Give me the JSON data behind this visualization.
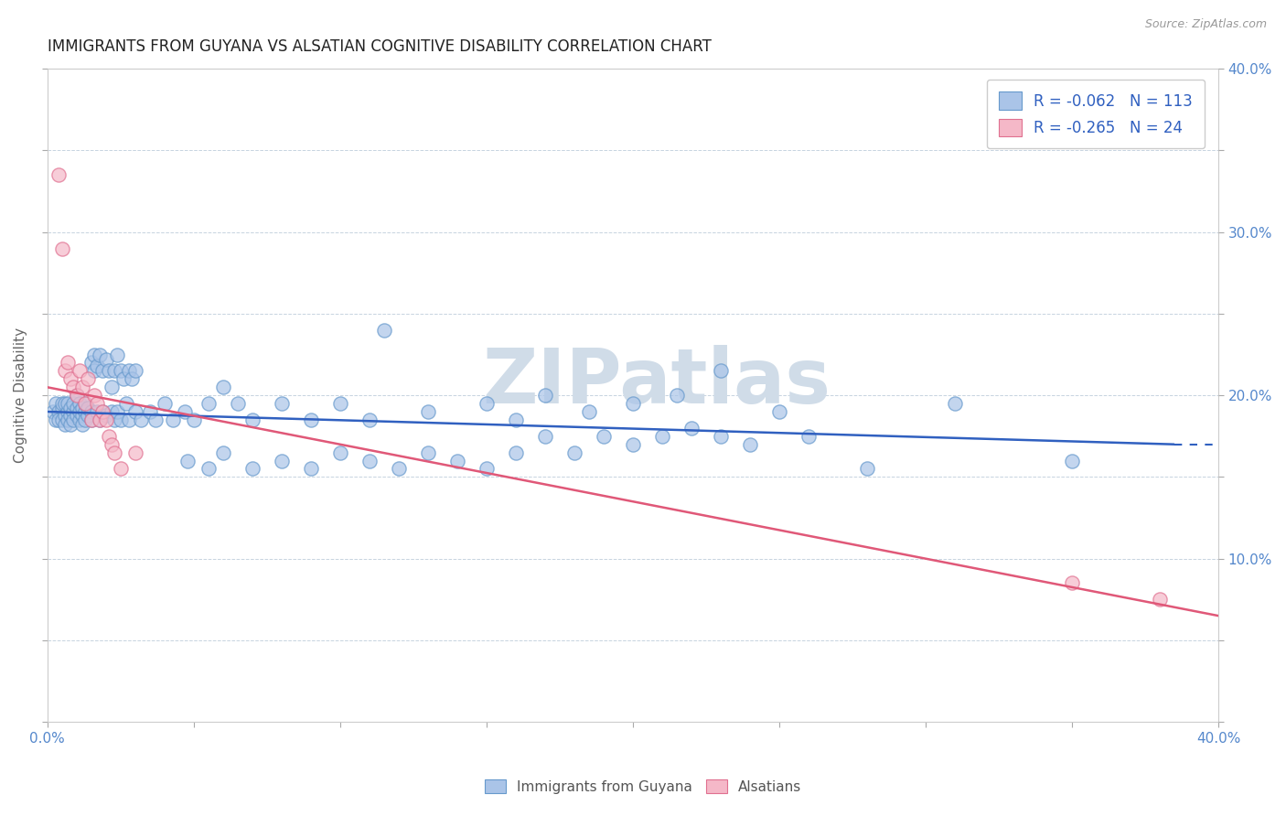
{
  "title": "IMMIGRANTS FROM GUYANA VS ALSATIAN COGNITIVE DISABILITY CORRELATION CHART",
  "source": "Source: ZipAtlas.com",
  "ylabel": "Cognitive Disability",
  "xlim": [
    0.0,
    0.4
  ],
  "ylim": [
    0.0,
    0.4
  ],
  "xtick_vals": [
    0.0,
    0.05,
    0.1,
    0.15,
    0.2,
    0.25,
    0.3,
    0.35,
    0.4
  ],
  "ytick_vals": [
    0.0,
    0.05,
    0.1,
    0.15,
    0.2,
    0.25,
    0.3,
    0.35,
    0.4
  ],
  "blue_R": -0.062,
  "blue_N": 113,
  "pink_R": -0.265,
  "pink_N": 24,
  "blue_marker_color": "#aac4e8",
  "blue_edge_color": "#6699cc",
  "pink_marker_color": "#f5b8c8",
  "pink_edge_color": "#e07090",
  "blue_line_color": "#3060c0",
  "pink_line_color": "#e05878",
  "tick_color": "#5588cc",
  "watermark_color": "#d0dce8",
  "legend_text_color": "#3060c0",
  "blue_line_end": 0.385,
  "blue_line_y_start": 0.19,
  "blue_line_y_end": 0.17,
  "pink_line_y_start": 0.205,
  "pink_line_y_end": 0.065,
  "blue_scatter": [
    [
      0.002,
      0.19
    ],
    [
      0.003,
      0.185
    ],
    [
      0.003,
      0.195
    ],
    [
      0.004,
      0.19
    ],
    [
      0.004,
      0.185
    ],
    [
      0.005,
      0.192
    ],
    [
      0.005,
      0.185
    ],
    [
      0.005,
      0.195
    ],
    [
      0.006,
      0.188
    ],
    [
      0.006,
      0.195
    ],
    [
      0.006,
      0.182
    ],
    [
      0.007,
      0.19
    ],
    [
      0.007,
      0.185
    ],
    [
      0.007,
      0.195
    ],
    [
      0.008,
      0.188
    ],
    [
      0.008,
      0.192
    ],
    [
      0.008,
      0.182
    ],
    [
      0.009,
      0.19
    ],
    [
      0.009,
      0.185
    ],
    [
      0.009,
      0.195
    ],
    [
      0.01,
      0.188
    ],
    [
      0.01,
      0.192
    ],
    [
      0.01,
      0.2
    ],
    [
      0.011,
      0.185
    ],
    [
      0.011,
      0.195
    ],
    [
      0.011,
      0.19
    ],
    [
      0.012,
      0.188
    ],
    [
      0.012,
      0.192
    ],
    [
      0.012,
      0.182
    ],
    [
      0.013,
      0.19
    ],
    [
      0.013,
      0.185
    ],
    [
      0.013,
      0.195
    ],
    [
      0.014,
      0.188
    ],
    [
      0.014,
      0.192
    ],
    [
      0.015,
      0.19
    ],
    [
      0.015,
      0.185
    ],
    [
      0.015,
      0.22
    ],
    [
      0.016,
      0.215
    ],
    [
      0.016,
      0.225
    ],
    [
      0.017,
      0.218
    ],
    [
      0.017,
      0.19
    ],
    [
      0.018,
      0.185
    ],
    [
      0.018,
      0.225
    ],
    [
      0.019,
      0.19
    ],
    [
      0.019,
      0.215
    ],
    [
      0.02,
      0.188
    ],
    [
      0.02,
      0.222
    ],
    [
      0.021,
      0.215
    ],
    [
      0.022,
      0.205
    ],
    [
      0.022,
      0.19
    ],
    [
      0.023,
      0.215
    ],
    [
      0.023,
      0.185
    ],
    [
      0.024,
      0.225
    ],
    [
      0.024,
      0.19
    ],
    [
      0.025,
      0.215
    ],
    [
      0.025,
      0.185
    ],
    [
      0.026,
      0.21
    ],
    [
      0.027,
      0.195
    ],
    [
      0.028,
      0.215
    ],
    [
      0.028,
      0.185
    ],
    [
      0.029,
      0.21
    ],
    [
      0.03,
      0.19
    ],
    [
      0.03,
      0.215
    ],
    [
      0.032,
      0.185
    ],
    [
      0.035,
      0.19
    ],
    [
      0.037,
      0.185
    ],
    [
      0.04,
      0.195
    ],
    [
      0.043,
      0.185
    ],
    [
      0.047,
      0.19
    ],
    [
      0.05,
      0.185
    ],
    [
      0.055,
      0.195
    ],
    [
      0.06,
      0.205
    ],
    [
      0.065,
      0.195
    ],
    [
      0.07,
      0.185
    ],
    [
      0.08,
      0.195
    ],
    [
      0.09,
      0.185
    ],
    [
      0.1,
      0.195
    ],
    [
      0.11,
      0.185
    ],
    [
      0.115,
      0.24
    ],
    [
      0.13,
      0.19
    ],
    [
      0.15,
      0.195
    ],
    [
      0.16,
      0.185
    ],
    [
      0.17,
      0.2
    ],
    [
      0.185,
      0.19
    ],
    [
      0.2,
      0.195
    ],
    [
      0.215,
      0.2
    ],
    [
      0.23,
      0.215
    ],
    [
      0.25,
      0.19
    ],
    [
      0.28,
      0.155
    ],
    [
      0.31,
      0.195
    ],
    [
      0.35,
      0.16
    ],
    [
      0.048,
      0.16
    ],
    [
      0.055,
      0.155
    ],
    [
      0.06,
      0.165
    ],
    [
      0.07,
      0.155
    ],
    [
      0.08,
      0.16
    ],
    [
      0.09,
      0.155
    ],
    [
      0.1,
      0.165
    ],
    [
      0.11,
      0.16
    ],
    [
      0.12,
      0.155
    ],
    [
      0.13,
      0.165
    ],
    [
      0.14,
      0.16
    ],
    [
      0.15,
      0.155
    ],
    [
      0.16,
      0.165
    ],
    [
      0.17,
      0.175
    ],
    [
      0.18,
      0.165
    ],
    [
      0.19,
      0.175
    ],
    [
      0.2,
      0.17
    ],
    [
      0.21,
      0.175
    ],
    [
      0.22,
      0.18
    ],
    [
      0.23,
      0.175
    ],
    [
      0.24,
      0.17
    ],
    [
      0.26,
      0.175
    ]
  ],
  "pink_scatter": [
    [
      0.004,
      0.335
    ],
    [
      0.005,
      0.29
    ],
    [
      0.006,
      0.215
    ],
    [
      0.007,
      0.22
    ],
    [
      0.008,
      0.21
    ],
    [
      0.009,
      0.205
    ],
    [
      0.01,
      0.2
    ],
    [
      0.011,
      0.215
    ],
    [
      0.012,
      0.205
    ],
    [
      0.013,
      0.195
    ],
    [
      0.014,
      0.21
    ],
    [
      0.015,
      0.185
    ],
    [
      0.016,
      0.2
    ],
    [
      0.017,
      0.195
    ],
    [
      0.018,
      0.185
    ],
    [
      0.019,
      0.19
    ],
    [
      0.02,
      0.185
    ],
    [
      0.021,
      0.175
    ],
    [
      0.022,
      0.17
    ],
    [
      0.023,
      0.165
    ],
    [
      0.025,
      0.155
    ],
    [
      0.03,
      0.165
    ],
    [
      0.35,
      0.085
    ],
    [
      0.38,
      0.075
    ]
  ]
}
